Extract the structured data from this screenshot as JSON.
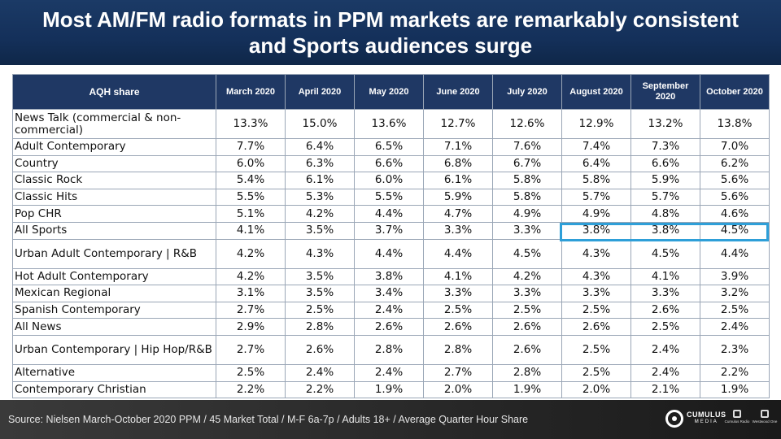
{
  "title": "Most AM/FM radio formats in PPM markets are remarkably consistent and Sports audiences surge",
  "table": {
    "header": [
      "AQH share",
      "March 2020",
      "April 2020",
      "May 2020",
      "June 2020",
      "July 2020",
      "August 2020",
      "September 2020",
      "October 2020"
    ],
    "rows": [
      {
        "format": "News Talk (commercial & non-commercial)",
        "values": [
          "13.3%",
          "15.0%",
          "13.6%",
          "12.7%",
          "12.6%",
          "12.9%",
          "13.2%",
          "13.8%"
        ]
      },
      {
        "format": "Adult Contemporary",
        "values": [
          "7.7%",
          "6.4%",
          "6.5%",
          "7.1%",
          "7.6%",
          "7.4%",
          "7.3%",
          "7.0%"
        ]
      },
      {
        "format": "Country",
        "values": [
          "6.0%",
          "6.3%",
          "6.6%",
          "6.8%",
          "6.7%",
          "6.4%",
          "6.6%",
          "6.2%"
        ]
      },
      {
        "format": "Classic Rock",
        "values": [
          "5.4%",
          "6.1%",
          "6.0%",
          "6.1%",
          "5.8%",
          "5.8%",
          "5.9%",
          "5.6%"
        ]
      },
      {
        "format": "Classic Hits",
        "values": [
          "5.5%",
          "5.3%",
          "5.5%",
          "5.9%",
          "5.8%",
          "5.7%",
          "5.7%",
          "5.6%"
        ]
      },
      {
        "format": "Pop CHR",
        "values": [
          "5.1%",
          "4.2%",
          "4.4%",
          "4.7%",
          "4.9%",
          "4.9%",
          "4.8%",
          "4.6%"
        ]
      },
      {
        "format": "All Sports",
        "values": [
          "4.1%",
          "3.5%",
          "3.7%",
          "3.3%",
          "3.3%",
          "3.8%",
          "3.8%",
          "4.5%"
        ]
      },
      {
        "format": "Urban Adult Contemporary | R&B",
        "values": [
          "4.2%",
          "4.3%",
          "4.4%",
          "4.4%",
          "4.5%",
          "4.3%",
          "4.5%",
          "4.4%"
        ]
      },
      {
        "format": "Hot Adult Contemporary",
        "values": [
          "4.2%",
          "3.5%",
          "3.8%",
          "4.1%",
          "4.2%",
          "4.3%",
          "4.1%",
          "3.9%"
        ]
      },
      {
        "format": "Mexican Regional",
        "values": [
          "3.1%",
          "3.5%",
          "3.4%",
          "3.3%",
          "3.3%",
          "3.3%",
          "3.3%",
          "3.2%"
        ]
      },
      {
        "format": "Spanish Contemporary",
        "values": [
          "2.7%",
          "2.5%",
          "2.4%",
          "2.5%",
          "2.5%",
          "2.5%",
          "2.6%",
          "2.5%"
        ]
      },
      {
        "format": "All News",
        "values": [
          "2.9%",
          "2.8%",
          "2.6%",
          "2.6%",
          "2.6%",
          "2.6%",
          "2.5%",
          "2.4%"
        ]
      },
      {
        "format": "Urban Contemporary | Hip Hop/R&B",
        "values": [
          "2.7%",
          "2.6%",
          "2.8%",
          "2.8%",
          "2.6%",
          "2.5%",
          "2.4%",
          "2.3%"
        ]
      },
      {
        "format": "Alternative",
        "values": [
          "2.5%",
          "2.4%",
          "2.4%",
          "2.7%",
          "2.8%",
          "2.5%",
          "2.4%",
          "2.2%"
        ]
      },
      {
        "format": "Contemporary Christian",
        "values": [
          "2.2%",
          "2.2%",
          "1.9%",
          "2.0%",
          "1.9%",
          "2.0%",
          "2.1%",
          "1.9%"
        ]
      }
    ],
    "highlight_color": "#2e9fd8",
    "header_color": "#1f3864"
  },
  "footer": {
    "source": "Source: Nielsen March-October 2020 PPM / 45 Market Total / M-F 6a-7p / Adults 18+ / Average Quarter Hour Share",
    "logo_word": "CUMULUS",
    "logo_sub": "MEDIA",
    "logo_icon": "cumulus-logo-icon",
    "sublogo1_caption": "Cumulus Radio",
    "sublogo2_caption": "Westwood One"
  }
}
